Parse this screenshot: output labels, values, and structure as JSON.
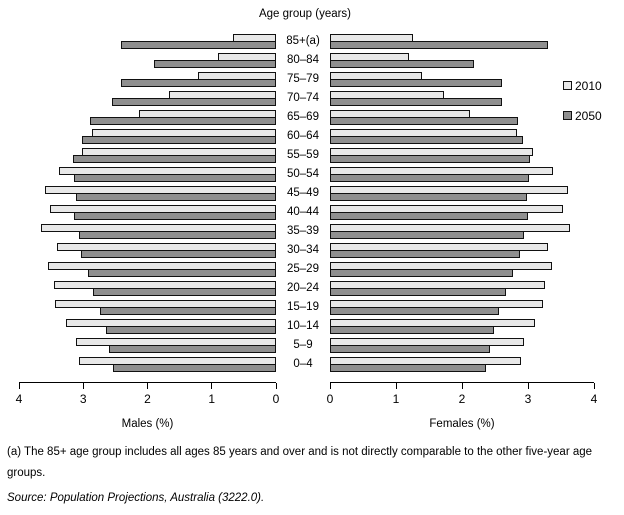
{
  "title": "Age group (years)",
  "legend": {
    "items": [
      {
        "label": "2010",
        "color": "#e8e8e8"
      },
      {
        "label": "2050",
        "color": "#8f8f8f"
      }
    ]
  },
  "axes": {
    "males": {
      "label": "Males (%)",
      "ticks": [
        4,
        3,
        2,
        1,
        0
      ],
      "max": 4
    },
    "females": {
      "label": "Females (%)",
      "ticks": [
        0,
        1,
        2,
        3,
        4
      ],
      "max": 4
    }
  },
  "footnote": "(a) The 85+ age group includes all ages 85 years and over and is not directly comparable to the other five-year age groups.",
  "source": "Source: Population Projections, Australia (3222.0).",
  "colors": {
    "bar_2010": "#e8e8e8",
    "bar_2050": "#8f8f8f",
    "bar_border": "#111111",
    "text": "#000000",
    "background": "#ffffff"
  },
  "chart_data": {
    "type": "bar",
    "subtype": "population_pyramid",
    "title": "Age group (years)",
    "categories": [
      "85+(a)",
      "80–84",
      "75–79",
      "70–74",
      "65–69",
      "60–64",
      "55–59",
      "50–54",
      "45–49",
      "40–44",
      "35–39",
      "30–34",
      "25–29",
      "20–24",
      "15–19",
      "10–14",
      "5–9",
      "0–4"
    ],
    "axis_max": 4,
    "grid": false,
    "legend_position": "right",
    "males_axis": {
      "label": "Males (%)",
      "range": [
        4,
        0
      ]
    },
    "females_axis": {
      "label": "Females (%)",
      "range": [
        0,
        4
      ]
    },
    "series": [
      {
        "name": "Males 2010",
        "side": "males",
        "year": "2010",
        "values": [
          0.67,
          0.91,
          1.22,
          1.66,
          2.14,
          2.86,
          3.02,
          3.37,
          3.6,
          3.51,
          3.66,
          3.41,
          3.55,
          3.46,
          3.44,
          3.27,
          3.11,
          3.07
        ]
      },
      {
        "name": "Males 2050",
        "side": "males",
        "year": "2050",
        "values": [
          2.41,
          1.9,
          2.42,
          2.56,
          2.89,
          3.02,
          3.16,
          3.15,
          3.11,
          3.15,
          3.06,
          3.03,
          2.92,
          2.85,
          2.74,
          2.64,
          2.6,
          2.54
        ]
      },
      {
        "name": "Females 2010",
        "side": "females",
        "year": "2010",
        "values": [
          1.25,
          1.19,
          1.4,
          1.73,
          2.12,
          2.84,
          3.08,
          3.38,
          3.61,
          3.53,
          3.64,
          3.31,
          3.37,
          3.25,
          3.23,
          3.1,
          2.94,
          2.9
        ]
      },
      {
        "name": "Females 2050",
        "side": "females",
        "year": "2050",
        "values": [
          3.3,
          2.18,
          2.6,
          2.6,
          2.85,
          2.92,
          3.03,
          3.02,
          2.98,
          3.0,
          2.94,
          2.88,
          2.77,
          2.67,
          2.56,
          2.49,
          2.43,
          2.36
        ]
      }
    ]
  }
}
